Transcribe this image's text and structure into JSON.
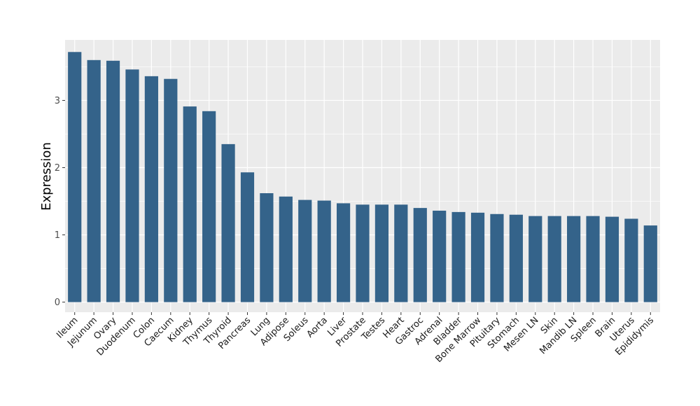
{
  "chart_data": {
    "type": "bar",
    "title": "",
    "xlabel": "",
    "ylabel": "Expression",
    "ylim": [
      -0.15,
      3.9
    ],
    "yticks": [
      0,
      1,
      2,
      3
    ],
    "grid": true,
    "legend": "none",
    "colors": {
      "bar": "#34638a",
      "panel": "#ebebeb",
      "grid": "#ffffff",
      "tick": "#4d4d4d"
    },
    "categories": [
      "Ileum",
      "Jejunum",
      "Ovary",
      "Duodenum",
      "Colon",
      "Caecum",
      "Kidney",
      "Thymus",
      "Thyroid",
      "Pancreas",
      "Lung",
      "Adipose",
      "Soleus",
      "Aorta",
      "Liver",
      "Prostate",
      "Testes",
      "Heart",
      "Gastroc",
      "Adrenal",
      "Bladder",
      "Bone Marrow",
      "Pituitary",
      "Stomach",
      "Mesen LN",
      "Skin",
      "Mandib LN",
      "Spleen",
      "Brain",
      "Uterus",
      "Epididymis"
    ],
    "values": [
      3.72,
      3.6,
      3.59,
      3.46,
      3.36,
      3.32,
      2.91,
      2.84,
      2.35,
      1.93,
      1.62,
      1.57,
      1.52,
      1.51,
      1.47,
      1.45,
      1.45,
      1.45,
      1.4,
      1.36,
      1.34,
      1.33,
      1.31,
      1.3,
      1.28,
      1.28,
      1.28,
      1.28,
      1.27,
      1.24,
      1.14
    ]
  }
}
